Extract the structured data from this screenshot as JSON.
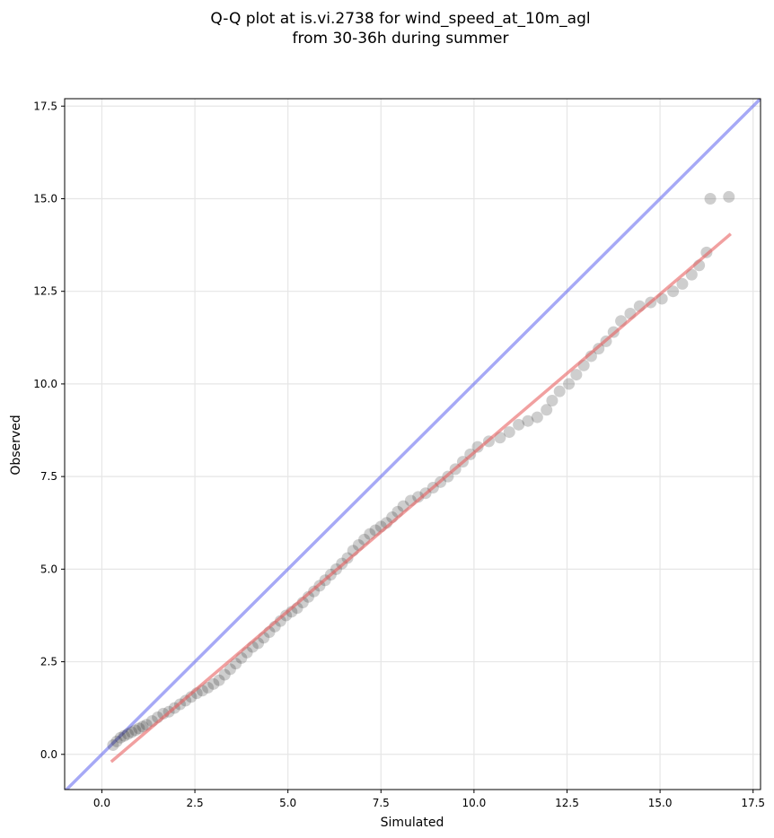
{
  "chart_data": {
    "type": "scatter",
    "title_line1": "Q-Q plot at is.vi.2738 for wind_speed_at_10m_agl",
    "title_line2": "from 30-36h during summer",
    "xlabel": "Simulated",
    "ylabel": "Observed",
    "xlim": [
      -1.0,
      17.7
    ],
    "ylim": [
      -0.95,
      17.7
    ],
    "xticks": [
      0.0,
      2.5,
      5.0,
      7.5,
      10.0,
      12.5,
      15.0,
      17.5
    ],
    "xtick_labels": [
      "0.0",
      "2.5",
      "5.0",
      "7.5",
      "10.0",
      "12.5",
      "15.0",
      "17.5"
    ],
    "yticks": [
      0.0,
      2.5,
      5.0,
      7.5,
      10.0,
      12.5,
      15.0,
      17.5
    ],
    "ytick_labels": [
      "0.0",
      "2.5",
      "5.0",
      "7.5",
      "10.0",
      "12.5",
      "15.0",
      "17.5"
    ],
    "grid": true,
    "identity_line": {
      "x": [
        -1.0,
        17.7
      ],
      "y": [
        -1.0,
        17.7
      ],
      "color": "#6a6ff0"
    },
    "fit_line": {
      "x": [
        0.25,
        16.9
      ],
      "y": [
        -0.2,
        14.05
      ],
      "color": "#e86060"
    },
    "point_color": "#222222",
    "points": [
      [
        0.3,
        0.25
      ],
      [
        0.4,
        0.35
      ],
      [
        0.5,
        0.45
      ],
      [
        0.6,
        0.5
      ],
      [
        0.7,
        0.55
      ],
      [
        0.8,
        0.6
      ],
      [
        0.9,
        0.65
      ],
      [
        1.0,
        0.7
      ],
      [
        1.1,
        0.75
      ],
      [
        1.2,
        0.8
      ],
      [
        1.35,
        0.9
      ],
      [
        1.5,
        1.0
      ],
      [
        1.65,
        1.1
      ],
      [
        1.8,
        1.15
      ],
      [
        1.95,
        1.25
      ],
      [
        2.1,
        1.35
      ],
      [
        2.25,
        1.45
      ],
      [
        2.4,
        1.55
      ],
      [
        2.55,
        1.65
      ],
      [
        2.7,
        1.72
      ],
      [
        2.85,
        1.8
      ],
      [
        3.0,
        1.9
      ],
      [
        3.15,
        2.0
      ],
      [
        3.3,
        2.15
      ],
      [
        3.45,
        2.3
      ],
      [
        3.6,
        2.45
      ],
      [
        3.75,
        2.6
      ],
      [
        3.9,
        2.75
      ],
      [
        4.05,
        2.9
      ],
      [
        4.2,
        3.0
      ],
      [
        4.35,
        3.15
      ],
      [
        4.5,
        3.3
      ],
      [
        4.65,
        3.45
      ],
      [
        4.8,
        3.6
      ],
      [
        4.95,
        3.75
      ],
      [
        5.1,
        3.85
      ],
      [
        5.25,
        3.95
      ],
      [
        5.4,
        4.1
      ],
      [
        5.55,
        4.25
      ],
      [
        5.7,
        4.4
      ],
      [
        5.85,
        4.55
      ],
      [
        6.0,
        4.7
      ],
      [
        6.15,
        4.85
      ],
      [
        6.3,
        5.0
      ],
      [
        6.45,
        5.15
      ],
      [
        6.6,
        5.3
      ],
      [
        6.75,
        5.5
      ],
      [
        6.9,
        5.65
      ],
      [
        7.05,
        5.8
      ],
      [
        7.2,
        5.95
      ],
      [
        7.35,
        6.05
      ],
      [
        7.5,
        6.15
      ],
      [
        7.65,
        6.25
      ],
      [
        7.8,
        6.4
      ],
      [
        7.95,
        6.55
      ],
      [
        8.1,
        6.7
      ],
      [
        8.3,
        6.85
      ],
      [
        8.5,
        6.95
      ],
      [
        8.7,
        7.05
      ],
      [
        8.9,
        7.2
      ],
      [
        9.1,
        7.35
      ],
      [
        9.3,
        7.5
      ],
      [
        9.5,
        7.7
      ],
      [
        9.7,
        7.9
      ],
      [
        9.9,
        8.1
      ],
      [
        10.1,
        8.3
      ],
      [
        10.4,
        8.45
      ],
      [
        10.7,
        8.55
      ],
      [
        10.95,
        8.7
      ],
      [
        11.2,
        8.9
      ],
      [
        11.45,
        9.0
      ],
      [
        11.7,
        9.1
      ],
      [
        11.95,
        9.3
      ],
      [
        12.1,
        9.55
      ],
      [
        12.3,
        9.8
      ],
      [
        12.55,
        10.0
      ],
      [
        12.75,
        10.25
      ],
      [
        12.95,
        10.5
      ],
      [
        13.15,
        10.75
      ],
      [
        13.35,
        10.95
      ],
      [
        13.55,
        11.15
      ],
      [
        13.75,
        11.4
      ],
      [
        13.95,
        11.7
      ],
      [
        14.2,
        11.9
      ],
      [
        14.45,
        12.1
      ],
      [
        14.75,
        12.2
      ],
      [
        15.05,
        12.3
      ],
      [
        15.35,
        12.5
      ],
      [
        15.6,
        12.7
      ],
      [
        15.85,
        12.95
      ],
      [
        16.05,
        13.2
      ],
      [
        16.25,
        13.55
      ],
      [
        16.35,
        15.0
      ],
      [
        16.85,
        15.05
      ]
    ]
  }
}
